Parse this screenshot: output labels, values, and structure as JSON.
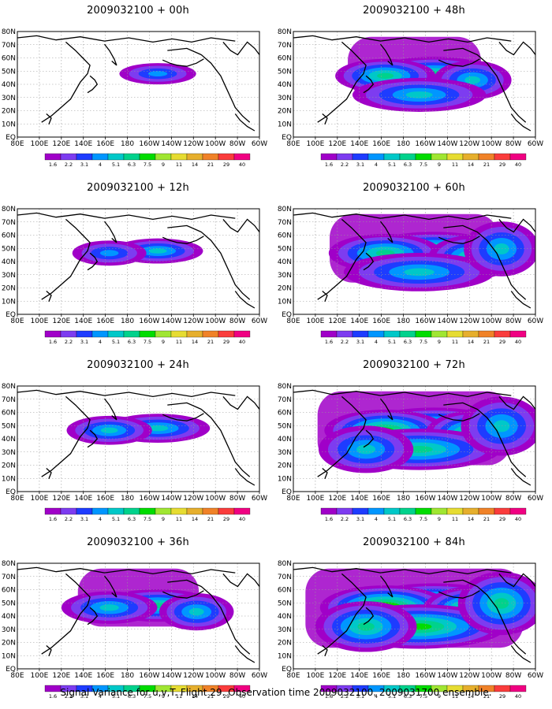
{
  "footer": "Signal Variance for u,v,T. Flight 29. Observation time 2009032100. 2009031700 ensemble.",
  "panels": [
    {
      "title": "2009032100 + 00h",
      "lead_hours": 0,
      "extent": 0.12,
      "intensity": 0.55
    },
    {
      "title": "2009032100 + 48h",
      "lead_hours": 48,
      "extent": 0.55,
      "intensity": 0.6
    },
    {
      "title": "2009032100 + 12h",
      "lead_hours": 12,
      "extent": 0.25,
      "intensity": 0.6
    },
    {
      "title": "2009032100 + 60h",
      "lead_hours": 60,
      "extent": 0.7,
      "intensity": 0.65
    },
    {
      "title": "2009032100 + 24h",
      "lead_hours": 24,
      "extent": 0.38,
      "intensity": 0.6
    },
    {
      "title": "2009032100 + 72h",
      "lead_hours": 72,
      "extent": 0.8,
      "intensity": 0.7
    },
    {
      "title": "2009032100 + 36h",
      "lead_hours": 36,
      "extent": 0.5,
      "intensity": 0.65
    },
    {
      "title": "2009032100 + 84h",
      "lead_hours": 84,
      "extent": 0.9,
      "intensity": 0.8
    }
  ],
  "chart_data": {
    "type": "heatmap",
    "xlabels": [
      "80E",
      "100E",
      "120E",
      "140E",
      "160E",
      "180",
      "160W",
      "140W",
      "120W",
      "100W",
      "80W",
      "60W"
    ],
    "ylabels": [
      "EQ",
      "10N",
      "20N",
      "30N",
      "40N",
      "50N",
      "60N",
      "70N",
      "80N"
    ],
    "xlim": [
      "80E",
      "60W"
    ],
    "ylim": [
      "EQ",
      "80N"
    ],
    "grid": true,
    "colorbar": {
      "levels": [
        "1.6",
        "2.2",
        "3.1",
        "4",
        "5.1",
        "6.3",
        "7.5",
        "9",
        "11",
        "14",
        "21",
        "29",
        "40"
      ],
      "colors": [
        "#a000c8",
        "#7d3cf0",
        "#1e3cff",
        "#0096ff",
        "#00c8c8",
        "#00d28c",
        "#00dc00",
        "#a0e632",
        "#e6dc32",
        "#e6af2d",
        "#f08228",
        "#fa3c3c",
        "#f00082"
      ]
    }
  }
}
